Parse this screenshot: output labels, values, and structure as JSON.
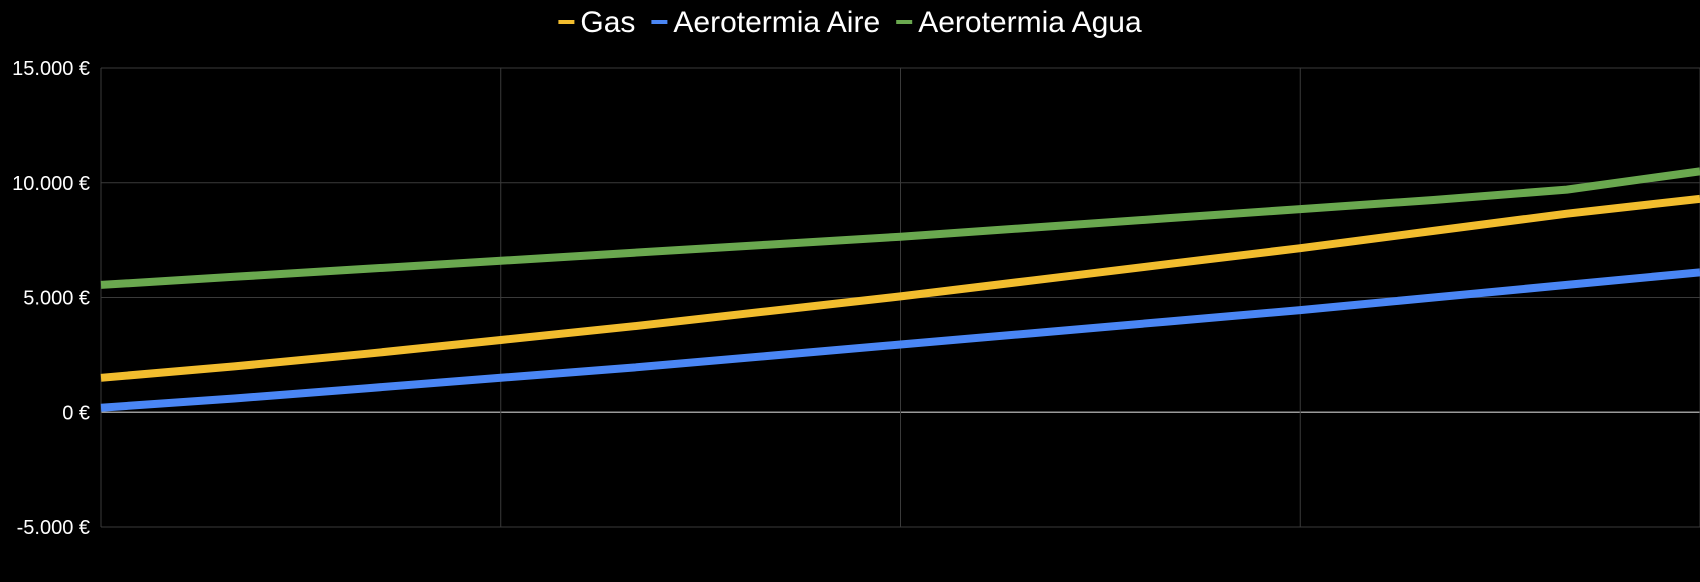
{
  "chart_data": {
    "type": "line",
    "title": "",
    "xlabel": "",
    "ylabel": "",
    "x": [
      0,
      1,
      2,
      3,
      4,
      5,
      6,
      7,
      8,
      9,
      10,
      11,
      12
    ],
    "ylim": [
      -5000,
      15000
    ],
    "yticks": [
      15000,
      10000,
      5000,
      0,
      -5000
    ],
    "ytick_labels": [
      "15.000 €",
      "10.000 €",
      "5.000 €",
      "0 €",
      "-5.000 €"
    ],
    "grid": true,
    "legend_position": "top",
    "series": [
      {
        "name": "Gas",
        "color": "#f2bd2e",
        "values": [
          1500,
          2000,
          2550,
          3150,
          3750,
          4400,
          5050,
          5750,
          6450,
          7150,
          7900,
          8650,
          9300
        ]
      },
      {
        "name": "Aerotermia Aire",
        "color": "#4a86f5",
        "values": [
          200,
          600,
          1050,
          1500,
          1950,
          2450,
          2950,
          3450,
          3950,
          4450,
          5000,
          5550,
          6100
        ]
      },
      {
        "name": "Aerotermia Agua",
        "color": "#6aa84f",
        "values": [
          5550,
          5900,
          6250,
          6600,
          6950,
          7300,
          7650,
          8050,
          8450,
          8850,
          9250,
          9700,
          10500
        ]
      }
    ]
  }
}
